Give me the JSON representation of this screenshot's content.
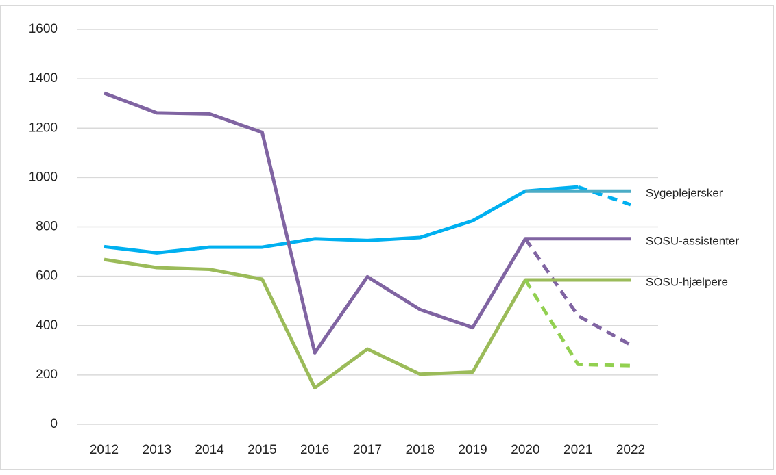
{
  "chart_data": {
    "type": "line",
    "categories": [
      "2012",
      "2013",
      "2014",
      "2015",
      "2016",
      "2017",
      "2018",
      "2019",
      "2020",
      "2021",
      "2022"
    ],
    "ylim": [
      0,
      1600
    ],
    "yticks": [
      0,
      200,
      400,
      600,
      800,
      1000,
      1200,
      1400,
      1600
    ],
    "grid": true,
    "series": [
      {
        "color": "#00b0f0",
        "dashed": false,
        "values": [
          720,
          695,
          718,
          718,
          752,
          745,
          757,
          825,
          945,
          962,
          null
        ]
      },
      {
        "color": "#00b0f0",
        "dashed": true,
        "values": [
          null,
          null,
          null,
          null,
          null,
          null,
          null,
          null,
          null,
          962,
          890
        ]
      },
      {
        "name": "Sygeplejersker",
        "color": "#4bacc6",
        "dashed": false,
        "values": [
          null,
          null,
          null,
          null,
          null,
          null,
          null,
          null,
          945,
          945,
          945
        ]
      },
      {
        "name": "SOSU-assistenter",
        "color": "#8064a2",
        "dashed": false,
        "values": [
          1342,
          1262,
          1258,
          1183,
          290,
          598,
          465,
          392,
          752,
          752,
          752
        ]
      },
      {
        "color": "#8064a2",
        "dashed": true,
        "values": [
          null,
          null,
          null,
          null,
          null,
          null,
          null,
          null,
          752,
          440,
          322
        ]
      },
      {
        "name": "SOSU-hjælpere",
        "color": "#9bbb59",
        "dashed": false,
        "values": [
          668,
          635,
          628,
          588,
          148,
          305,
          203,
          212,
          585,
          585,
          585
        ]
      },
      {
        "color": "#92d050",
        "dashed": true,
        "values": [
          null,
          null,
          null,
          null,
          null,
          null,
          null,
          null,
          585,
          243,
          238
        ]
      }
    ]
  }
}
